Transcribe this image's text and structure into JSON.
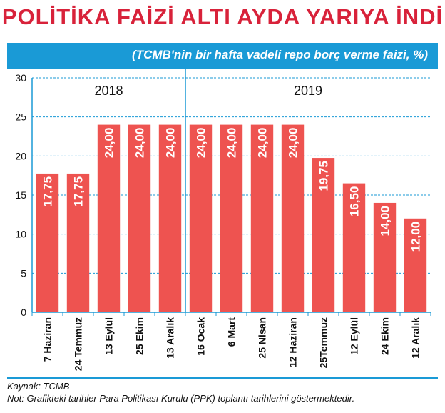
{
  "header": {
    "title": "POLİTİKA FAİZİ ALTI AYDA YARIYA İNDİ",
    "subtitle": "(TCMB'nin bir hafta vadeli repo borç verme faizi, %)"
  },
  "colors": {
    "title": "#d8223a",
    "subtitle_bar": "#1a9ad6",
    "bar": "#ee5350",
    "grid": "#1a9ad6",
    "axis": "#1a9ad6"
  },
  "chart_data": {
    "type": "bar",
    "title": "POLİTİKA FAİZİ ALTI AYDA YARIYA İNDİ",
    "subtitle": "(TCMB'nin bir hafta vadeli repo borç verme faizi, %)",
    "xlabel": "",
    "ylabel": "",
    "ylim": [
      0,
      30
    ],
    "yticks": [
      "0",
      "5",
      "10",
      "15",
      "20",
      "25",
      "30"
    ],
    "grid": true,
    "categories": [
      "7 Haziran",
      "24 Temmuz",
      "13 Eylül",
      "25 Ekim",
      "13 Aralık",
      "16 Ocak",
      "6 Mart",
      "25 Nisan",
      "12 Haziran",
      "25Temmuz",
      "12 Eylül",
      "24 Ekim",
      "12 Aralık"
    ],
    "values": [
      17.75,
      17.75,
      24.0,
      24.0,
      24.0,
      24.0,
      24.0,
      24.0,
      24.0,
      19.75,
      16.5,
      14.0,
      12.0
    ],
    "value_labels": [
      "17,75",
      "17,75",
      "24,00",
      "24,00",
      "24,00",
      "24,00",
      "24,00",
      "24,00",
      "24,00",
      "19,75",
      "16,50",
      "14,00",
      "12,00"
    ],
    "year_groups": [
      {
        "label": "2018",
        "count": 5
      },
      {
        "label": "2019",
        "count": 8
      }
    ]
  },
  "footer": {
    "source": "Kaynak: TCMB",
    "note": "Not: Grafikteki tarihler Para Politikası Kurulu (PPK) toplantı tarihlerini göstermektedir."
  }
}
